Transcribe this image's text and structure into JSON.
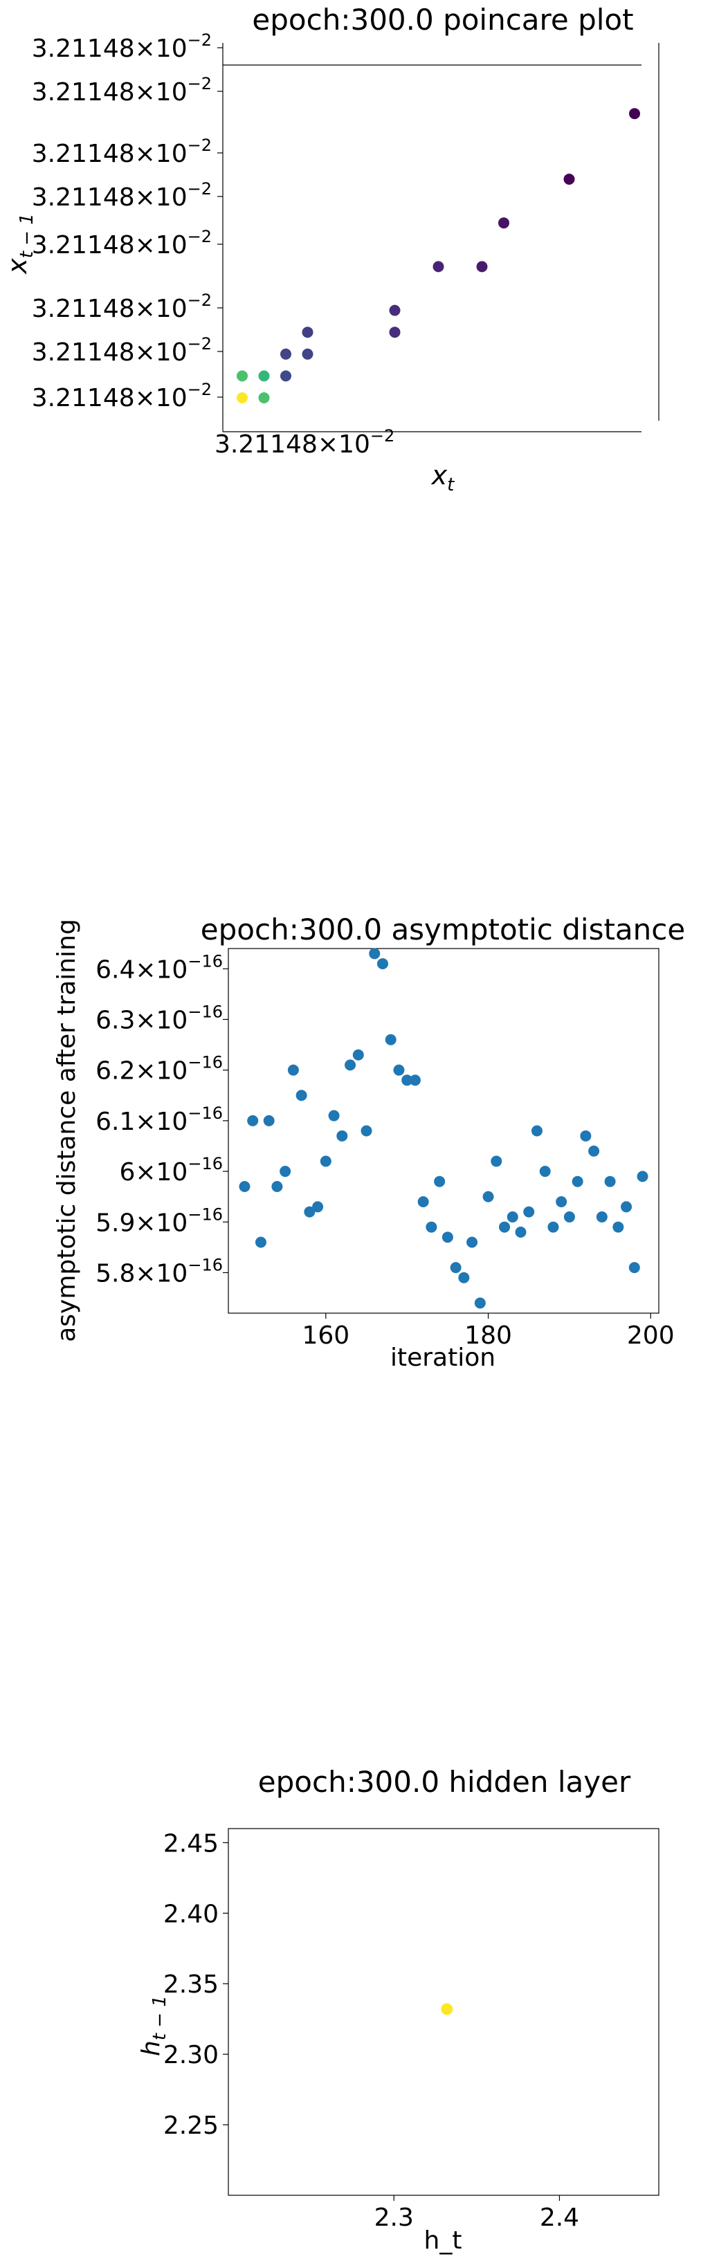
{
  "chart_data": [
    {
      "type": "scatter",
      "title": "epoch:300.0 poincare plot",
      "xlabel": "x_t",
      "ylabel": "x_{t-1}",
      "xtick_labels": [
        {
          "mant": "3.21148",
          "exp": "−2"
        }
      ],
      "ytick_labels": [
        {
          "mant": "3.21148",
          "exp": "−2"
        },
        {
          "mant": "3.21148",
          "exp": "−2"
        },
        {
          "mant": "3.21148",
          "exp": "−2"
        },
        {
          "mant": "3.21148",
          "exp": "−2"
        },
        {
          "mant": "3.21148",
          "exp": "−2"
        },
        {
          "mant": "3.21148",
          "exp": "−2"
        },
        {
          "mant": "3.21148",
          "exp": "−2"
        },
        {
          "mant": "3.21148",
          "exp": "−2"
        }
      ],
      "points": [
        {
          "x": 1,
          "y": 1,
          "color": "#fde725"
        },
        {
          "x": 2,
          "y": 1,
          "color": "#4ac16d"
        },
        {
          "x": 1,
          "y": 2,
          "color": "#4ac16d"
        },
        {
          "x": 2,
          "y": 2,
          "color": "#35b779"
        },
        {
          "x": 3,
          "y": 2,
          "color": "#3e4a89"
        },
        {
          "x": 3,
          "y": 3,
          "color": "#414487"
        },
        {
          "x": 4,
          "y": 3,
          "color": "#414487"
        },
        {
          "x": 4,
          "y": 4,
          "color": "#433e85"
        },
        {
          "x": 8,
          "y": 4,
          "color": "#472d7b"
        },
        {
          "x": 8,
          "y": 5,
          "color": "#472d7b"
        },
        {
          "x": 10,
          "y": 7,
          "color": "#482475"
        },
        {
          "x": 12,
          "y": 7,
          "color": "#481a6c"
        },
        {
          "x": 13,
          "y": 9,
          "color": "#471365"
        },
        {
          "x": 16,
          "y": 11,
          "color": "#450457"
        },
        {
          "x": 19,
          "y": 14,
          "color": "#440154"
        }
      ]
    },
    {
      "type": "scatter",
      "title": "epoch:300.0 asymptotic distance",
      "xlabel": "iteration",
      "ylabel": "asymptotic distance after training",
      "xlim": [
        148,
        201
      ],
      "ylim": [
        5.72,
        6.44
      ],
      "xticks": [
        160,
        180,
        200
      ],
      "yticks": [
        {
          "v": 5.8,
          "mant": "5.8",
          "exp": "−16"
        },
        {
          "v": 5.9,
          "mant": "5.9",
          "exp": "−16"
        },
        {
          "v": 6.0,
          "mant": "6",
          "exp": "−16"
        },
        {
          "v": 6.1,
          "mant": "6.1",
          "exp": "−16"
        },
        {
          "v": 6.2,
          "mant": "6.2",
          "exp": "−16"
        },
        {
          "v": 6.3,
          "mant": "6.3",
          "exp": "−16"
        },
        {
          "v": 6.4,
          "mant": "6.4",
          "exp": "−16"
        }
      ],
      "color": "#1f77b4",
      "x": [
        150,
        151,
        152,
        153,
        154,
        155,
        156,
        157,
        158,
        159,
        160,
        161,
        162,
        163,
        164,
        165,
        166,
        167,
        168,
        169,
        170,
        171,
        172,
        173,
        174,
        175,
        176,
        177,
        178,
        179,
        180,
        181,
        182,
        183,
        184,
        185,
        186,
        187,
        188,
        189,
        190,
        191,
        192,
        193,
        194,
        195,
        196,
        197,
        198,
        199
      ],
      "y": [
        5.97,
        6.1,
        5.86,
        6.1,
        5.97,
        6.0,
        6.2,
        6.15,
        5.92,
        5.93,
        6.02,
        6.11,
        6.07,
        6.21,
        6.23,
        6.08,
        6.43,
        6.41,
        6.26,
        6.2,
        6.18,
        6.18,
        5.94,
        5.89,
        5.98,
        5.87,
        5.81,
        5.79,
        5.86,
        5.74,
        5.95,
        6.02,
        5.89,
        5.91,
        5.88,
        5.92,
        6.08,
        6.0,
        5.89,
        5.94,
        5.91,
        5.98,
        6.07,
        6.04,
        5.91,
        5.98,
        5.89,
        5.93,
        5.81,
        5.99
      ]
    },
    {
      "type": "scatter",
      "title": "epoch:300.0 hidden layer",
      "xlabel": "h_t",
      "ylabel": "h_{t-1}",
      "xlim": [
        2.2,
        2.46
      ],
      "ylim": [
        2.2,
        2.46
      ],
      "xticks": [
        "2.3",
        "2.4"
      ],
      "yticks": [
        "2.25",
        "2.30",
        "2.35",
        "2.40",
        "2.45"
      ],
      "points": [
        {
          "x": 2.332,
          "y": 2.332,
          "color": "#fde725"
        }
      ]
    }
  ]
}
